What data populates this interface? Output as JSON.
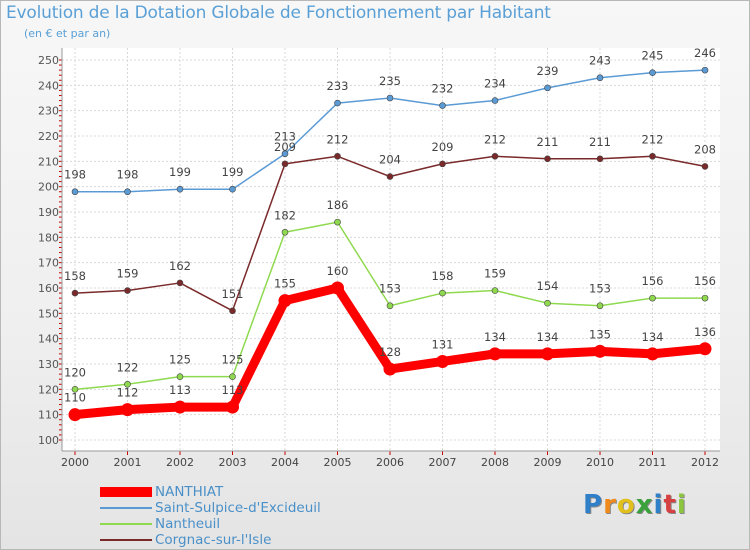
{
  "title": "Evolution de la Dotation Globale de Fonctionnement par Habitant",
  "subtitle": "(en € et par an)",
  "logo": [
    "P",
    "r",
    "o",
    "x",
    "i",
    "t",
    "i"
  ],
  "chart_data": {
    "type": "line",
    "title": "Evolution de la Dotation Globale de Fonctionnement par Habitant",
    "ylabel": "(en € et par an)",
    "xlabel": "",
    "x": [
      "2000",
      "2001",
      "2002",
      "2003",
      "2004",
      "2005",
      "2006",
      "2007",
      "2008",
      "2009",
      "2010",
      "2011",
      "2012"
    ],
    "ylim": [
      100,
      250
    ],
    "yticks": [
      100,
      110,
      120,
      130,
      140,
      150,
      160,
      170,
      180,
      190,
      200,
      210,
      220,
      230,
      240,
      250
    ],
    "grid": true,
    "legend_position": "bottom-left",
    "series": [
      {
        "name": "NANTHIAT",
        "color": "#ff0000",
        "values": [
          110,
          112,
          113,
          113,
          155,
          160,
          128,
          131,
          134,
          134,
          135,
          134,
          136
        ]
      },
      {
        "name": "Saint-Sulpice-d'Excideuil",
        "color": "#5b9bd5",
        "values": [
          198,
          198,
          199,
          199,
          213,
          233,
          235,
          232,
          234,
          239,
          243,
          245,
          246
        ]
      },
      {
        "name": "Nantheuil",
        "color": "#8fd94f",
        "values": [
          120,
          122,
          125,
          125,
          182,
          186,
          153,
          158,
          159,
          154,
          153,
          156,
          156
        ]
      },
      {
        "name": "Corgnac-sur-l'Isle",
        "color": "#7a2a2a",
        "values": [
          158,
          159,
          162,
          151,
          209,
          212,
          204,
          209,
          212,
          211,
          211,
          212,
          208
        ]
      }
    ]
  }
}
